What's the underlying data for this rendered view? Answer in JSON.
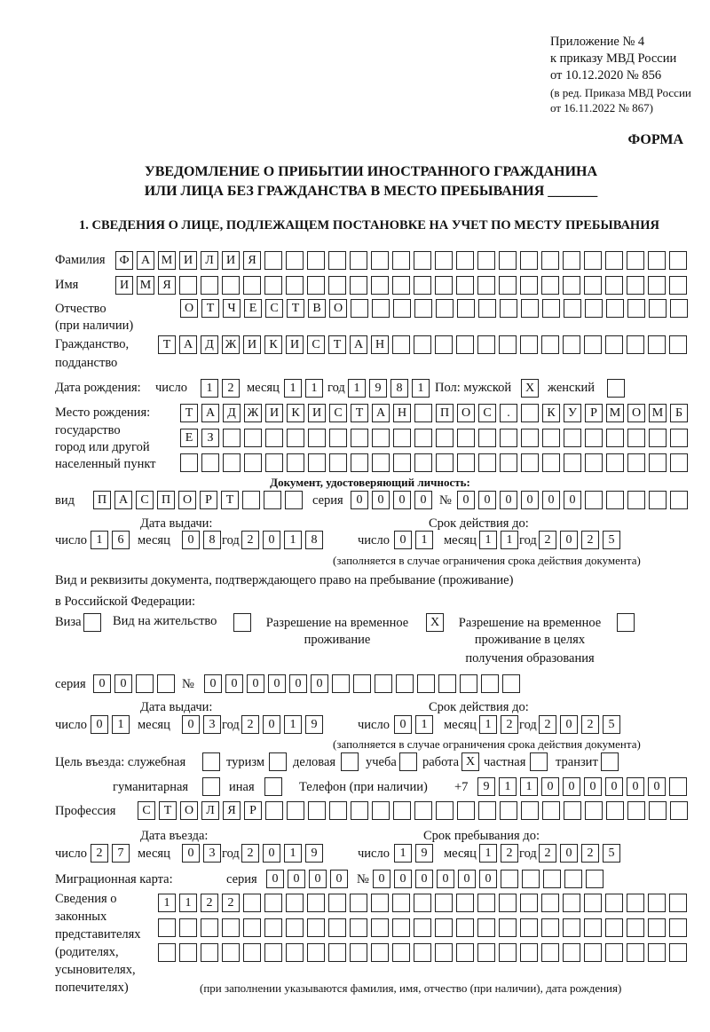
{
  "header": {
    "annex": "Приложение № 4",
    "order": "к приказу МВД России",
    "order_date": "от 10.12.2020 № 856",
    "edition1": "(в ред. Приказа МВД России",
    "edition2": "от 16.11.2022 № 867)",
    "form_label": "ФОРМА",
    "title1": "УВЕДОМЛЕНИЕ О ПРИБЫТИИ ИНОСТРАННОГО ГРАЖДАНИНА",
    "title2": "ИЛИ ЛИЦА БЕЗ ГРАЖДАНСТВА В МЕСТО ПРЕБЫВАНИЯ _______",
    "section1": "1. СВЕДЕНИЯ О ЛИЦЕ, ПОДЛЕЖАЩЕМ ПОСТАНОВКЕ НА УЧЕТ ПО МЕСТУ ПРЕБЫВАНИЯ"
  },
  "labels": {
    "surname": "Фамилия",
    "name": "Имя",
    "patronymic1": "Отчество",
    "patronymic2": "(при наличии)",
    "citizenship1": "Гражданство,",
    "citizenship2": "подданство",
    "birth_date": "Дата рождения:",
    "day": "число",
    "month": "месяц",
    "year": "год",
    "sex": "Пол: мужской",
    "female": "женский",
    "birthplace1": "Место рождения:",
    "birthplace2": "государство",
    "birthplace3": "город или другой",
    "birthplace4": "населенный пункт",
    "id_doc": "Документ, удостоверяющий личность:",
    "kind": "вид",
    "series": "серия",
    "number": "№",
    "issue_date": "Дата выдачи:",
    "valid_until": "Срок действия до:",
    "validity_note": "(заполняется в случае ограничения срока действия документа)",
    "right_doc1": "Вид и реквизиты документа, подтверждающего право на пребывание (проживание)",
    "right_doc2": "в Российской Федерации:",
    "visa": "Виза",
    "residence": "Вид на жительство",
    "temp1": "Разрешение на временное",
    "temp2": "проживание",
    "edu1": "Разрешение на временное",
    "edu2": "проживание в целях",
    "edu3": "получения образования",
    "purpose": "Цель въезда: служебная",
    "tourism": "туризм",
    "business": "деловая",
    "study": "учеба",
    "work": "работа",
    "private": "частная",
    "transit": "транзит",
    "humanitarian": "гуманитарная",
    "other": "иная",
    "phone": "Телефон (при наличии)",
    "phone_prefix": "+7",
    "profession": "Профессия",
    "entry_date": "Дата въезда:",
    "stay_until": "Срок пребывания до:",
    "migration_card": "Миграционная карта:",
    "reps1": "Сведения о",
    "reps2": "законных",
    "reps3": "представителях",
    "reps4": "(родителях,",
    "reps5": "усыновителях,",
    "reps6": "попечителях)",
    "reps_note": "(при заполнении указываются фамилия, имя, отчество (при наличии), дата рождения)"
  },
  "fields": {
    "surname": [
      "Ф",
      "А",
      "М",
      "И",
      "Л",
      "И",
      "Я"
    ],
    "name": [
      "И",
      "М",
      "Я"
    ],
    "patronymic": [
      "О",
      "Т",
      "Ч",
      "Е",
      "С",
      "Т",
      "В",
      "О"
    ],
    "citizenship": [
      "Т",
      "А",
      "Д",
      "Ж",
      "И",
      "К",
      "И",
      "С",
      "Т",
      "А",
      "Н"
    ],
    "birth_day": [
      "1",
      "2"
    ],
    "birth_month": [
      "1",
      "1"
    ],
    "birth_year": [
      "1",
      "9",
      "8",
      "1"
    ],
    "sex_male": [
      "X"
    ],
    "sex_female": [
      ""
    ],
    "birthplace_1": [
      "Т",
      "А",
      "Д",
      "Ж",
      "И",
      "К",
      "И",
      "С",
      "Т",
      "А",
      "Н",
      "",
      "П",
      "О",
      "С",
      ".",
      "",
      "К",
      "У",
      "Р",
      "М",
      "О",
      "М",
      "Б"
    ],
    "birthplace_2": [
      "Е",
      "З"
    ],
    "birthplace_3": [],
    "doc_kind": [
      "П",
      "А",
      "С",
      "П",
      "О",
      "Р",
      "Т"
    ],
    "doc_series": [
      "0",
      "0",
      "0",
      "0"
    ],
    "doc_number": [
      "0",
      "0",
      "0",
      "0",
      "0",
      "0"
    ],
    "doc_issue_day": [
      "1",
      "6"
    ],
    "doc_issue_month": [
      "0",
      "8"
    ],
    "doc_issue_year": [
      "2",
      "0",
      "1",
      "8"
    ],
    "doc_valid_day": [
      "0",
      "1"
    ],
    "doc_valid_month": [
      "1",
      "1"
    ],
    "doc_valid_year": [
      "2",
      "0",
      "2",
      "5"
    ],
    "right_visa": [
      ""
    ],
    "right_residence": [
      ""
    ],
    "right_temp": [
      "X"
    ],
    "right_edu": [
      ""
    ],
    "right_series": [
      "0",
      "0"
    ],
    "right_number": [
      "0",
      "0",
      "0",
      "0",
      "0",
      "0"
    ],
    "right_issue_day": [
      "0",
      "1"
    ],
    "right_issue_month": [
      "0",
      "3"
    ],
    "right_issue_year": [
      "2",
      "0",
      "1",
      "9"
    ],
    "right_valid_day": [
      "0",
      "1"
    ],
    "right_valid_month": [
      "1",
      "2"
    ],
    "right_valid_year": [
      "2",
      "0",
      "2",
      "5"
    ],
    "p_service": [
      ""
    ],
    "p_tourism": [
      ""
    ],
    "p_business": [
      ""
    ],
    "p_study": [
      ""
    ],
    "p_work": [
      "X"
    ],
    "p_private": [
      ""
    ],
    "p_transit": [
      ""
    ],
    "p_humanitarian": [
      ""
    ],
    "p_other": [
      ""
    ],
    "phone": [
      "9",
      "1",
      "1",
      "0",
      "0",
      "0",
      "0",
      "0",
      "0"
    ],
    "profession": [
      "С",
      "Т",
      "О",
      "Л",
      "Я",
      "Р"
    ],
    "entry_day": [
      "2",
      "7"
    ],
    "entry_month": [
      "0",
      "3"
    ],
    "entry_year": [
      "2",
      "0",
      "1",
      "9"
    ],
    "stay_day": [
      "1",
      "9"
    ],
    "stay_month": [
      "1",
      "2"
    ],
    "stay_year": [
      "2",
      "0",
      "2",
      "5"
    ],
    "mc_series": [
      "0",
      "0",
      "0",
      "0"
    ],
    "mc_number": [
      "0",
      "0",
      "0",
      "0",
      "0",
      "0"
    ],
    "reps_1": [
      "1",
      "1",
      "2",
      "2"
    ],
    "reps_2": [],
    "reps_3": []
  }
}
